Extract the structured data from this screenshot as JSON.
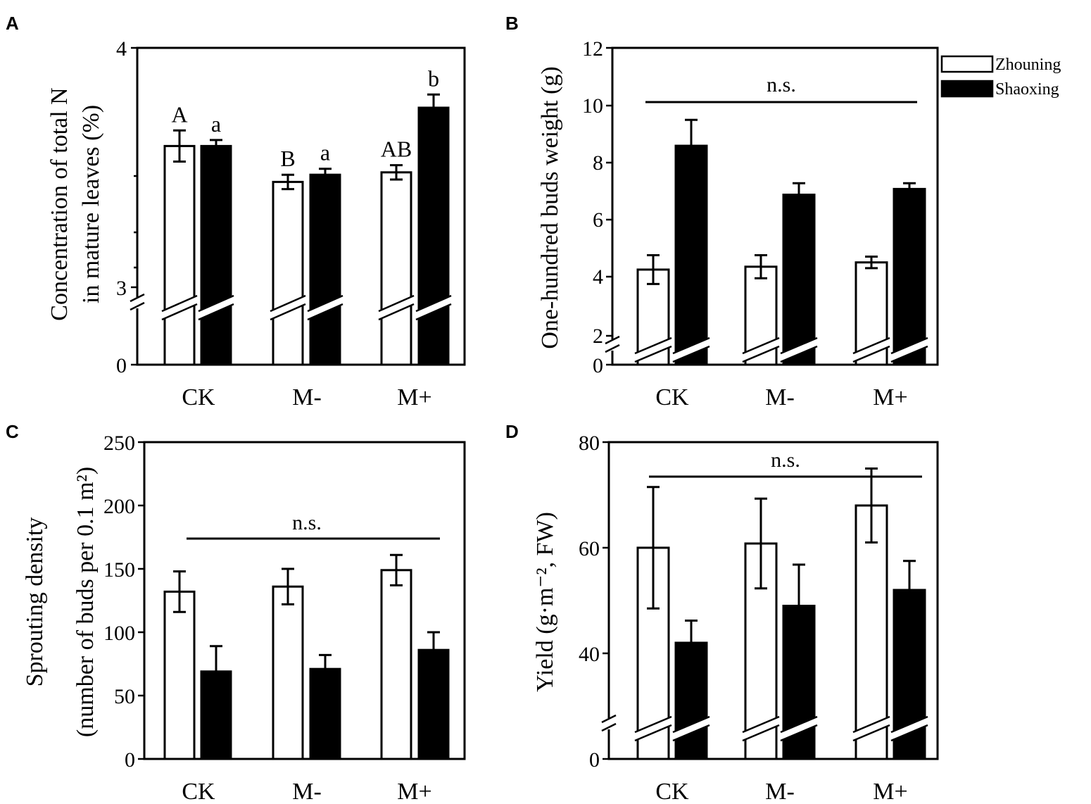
{
  "legend": {
    "items": [
      {
        "name": "Zhouning",
        "fill": "#ffffff"
      },
      {
        "name": "Shaoxing",
        "fill": "#000000"
      }
    ]
  },
  "chart_data": [
    {
      "panel": "A",
      "type": "bar",
      "categories": [
        "CK",
        "M-",
        "M+"
      ],
      "ylabel_lines": [
        "Concentration of total N",
        "in mature leaves (%)"
      ],
      "yticks": [
        "0",
        "3",
        "4"
      ],
      "axis_break": true,
      "series": [
        {
          "name": "Zhouning",
          "values": [
            3.59,
            3.44,
            3.48
          ],
          "errors": [
            0.065,
            0.03,
            0.03
          ],
          "letters": [
            "A",
            "B",
            "AB"
          ]
        },
        {
          "name": "Shaoxing",
          "values": [
            3.59,
            3.47,
            3.75
          ],
          "errors": [
            0.025,
            0.025,
            0.055
          ],
          "letters": [
            "a",
            "a",
            "b"
          ]
        }
      ],
      "significance": ""
    },
    {
      "panel": "B",
      "type": "bar",
      "categories": [
        "CK",
        "M-",
        "M+"
      ],
      "ylabel_lines": [
        "One-hundred buds weight (g)"
      ],
      "yticks": [
        "0",
        "2",
        "4",
        "6",
        "8",
        "10",
        "12"
      ],
      "ylim": [
        0,
        12
      ],
      "axis_break": true,
      "series": [
        {
          "name": "Zhouning",
          "values": [
            4.3,
            4.4,
            4.55
          ],
          "errors": [
            0.5,
            0.4,
            0.2
          ],
          "letters": []
        },
        {
          "name": "Shaoxing",
          "values": [
            8.6,
            6.9,
            7.1
          ],
          "errors": [
            0.9,
            0.4,
            0.2
          ],
          "letters": []
        }
      ],
      "significance": "n.s."
    },
    {
      "panel": "C",
      "type": "bar",
      "categories": [
        "CK",
        "M-",
        "M+"
      ],
      "ylabel_lines": [
        "Sprouting density",
        "(number of buds per 0.1 m²)"
      ],
      "yticks": [
        "0",
        "50",
        "100",
        "150",
        "200",
        "250"
      ],
      "ylim": [
        0,
        250
      ],
      "axis_break": false,
      "series": [
        {
          "name": "Zhouning",
          "values": [
            132,
            136,
            149
          ],
          "errors": [
            16,
            14,
            12
          ],
          "letters": []
        },
        {
          "name": "Shaoxing",
          "values": [
            69,
            71,
            86
          ],
          "errors": [
            20,
            11,
            14
          ],
          "letters": []
        }
      ],
      "significance": "n.s."
    },
    {
      "panel": "D",
      "type": "bar",
      "categories": [
        "CK",
        "M-",
        "M+"
      ],
      "ylabel_lines": [
        "Yield (g·m⁻², FW)"
      ],
      "yticks": [
        "0",
        "40",
        "60",
        "80"
      ],
      "ylim": [
        0,
        80
      ],
      "axis_break": true,
      "series": [
        {
          "name": "Zhouning",
          "values": [
            60,
            60.8,
            68
          ],
          "errors": [
            11.5,
            8.5,
            7
          ],
          "letters": []
        },
        {
          "name": "Shaoxing",
          "values": [
            42,
            49,
            52
          ],
          "errors": [
            4.2,
            7.8,
            5.5
          ],
          "letters": []
        }
      ],
      "significance": "n.s."
    }
  ]
}
